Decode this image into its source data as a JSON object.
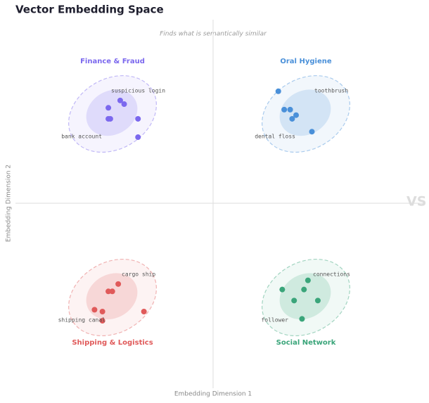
{
  "chart_data": {
    "type": "scatter",
    "title": "Vector Embedding Space",
    "subtitle": "Finds what is semantically similar",
    "xlabel": "Embedding Dimension 1",
    "ylabel": "Embedding Dimension 2",
    "watermark": "VS",
    "xlim": [
      -10,
      10
    ],
    "ylim": [
      -10,
      10
    ],
    "series": [
      {
        "name": "Finance & Fraud",
        "color": "#7b68ee",
        "x": [
          -5.3,
          -4.7,
          -4.5,
          -5.3,
          -5.2,
          -3.8,
          -3.8
        ],
        "y": [
          5.2,
          5.6,
          5.4,
          4.6,
          4.6,
          4.6,
          3.6
        ],
        "words": [
          "suspicious login",
          "bank account"
        ]
      },
      {
        "name": "Oral Hygiene",
        "color": "#4a90d9",
        "x": [
          3.3,
          3.6,
          3.9,
          4.2,
          4.0,
          5.0
        ],
        "y": [
          6.1,
          5.1,
          5.1,
          4.8,
          4.6,
          3.9
        ],
        "words": [
          "toothbrush",
          "dental floss"
        ]
      },
      {
        "name": "Shipping & Logistics",
        "color": "#e05a5a",
        "x": [
          -4.8,
          -5.3,
          -5.1,
          -6.0,
          -5.6,
          -5.6,
          -3.5
        ],
        "y": [
          -4.4,
          -4.8,
          -4.8,
          -5.8,
          -5.9,
          -6.4,
          -5.9
        ],
        "words": [
          "cargo ship",
          "shipping canal"
        ]
      },
      {
        "name": "Social Network",
        "color": "#3aa57a",
        "x": [
          4.8,
          3.5,
          4.6,
          4.1,
          5.3,
          4.5
        ],
        "y": [
          -4.2,
          -4.7,
          -4.7,
          -5.3,
          -5.3,
          -6.3
        ],
        "words": [
          "connections",
          "follower"
        ]
      }
    ]
  }
}
